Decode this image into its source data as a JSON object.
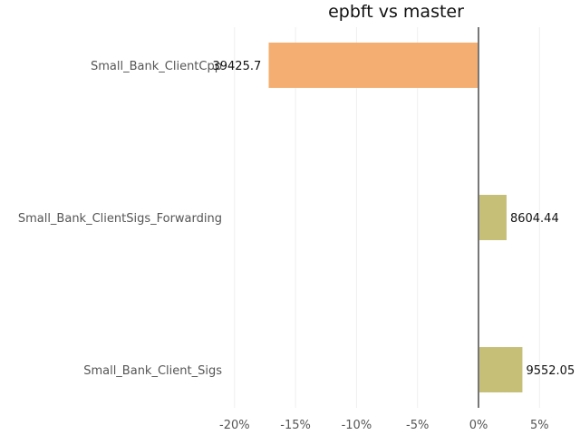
{
  "chart_data": {
    "type": "bar",
    "orientation": "horizontal",
    "title": "epbft vs master",
    "categories": [
      "Small_Bank_ClientCpp",
      "Small_Bank_ClientSigs_Forwarding",
      "Small_Bank_Client_Sigs"
    ],
    "values": [
      -17.2,
      2.3,
      3.6
    ],
    "value_labels": [
      "39425.7",
      "8604.44",
      "9552.05"
    ],
    "colors": [
      "#f4ae72",
      "#c6bf77",
      "#c6bf77"
    ],
    "xlim": [
      -21,
      6.5
    ],
    "xticks": [
      -20,
      -15,
      -10,
      -5,
      0,
      5
    ],
    "xtick_labels": [
      "-20%",
      "-15%",
      "-10%",
      "-5%",
      "0%",
      "5%"
    ],
    "xlabel": "",
    "ylabel": "",
    "grid": true,
    "legend": "none"
  }
}
